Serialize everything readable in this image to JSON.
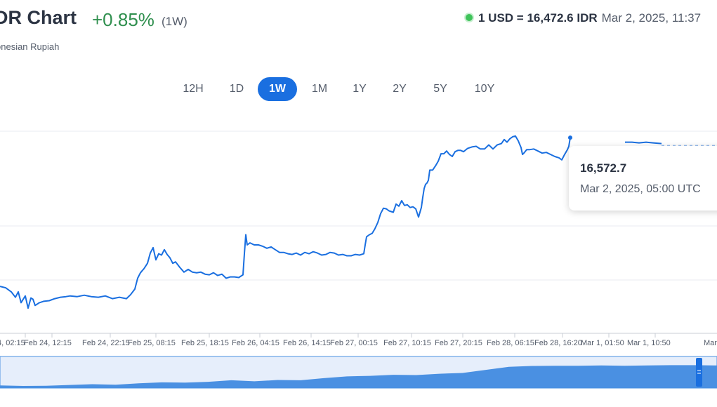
{
  "header": {
    "title": "DR Chart",
    "change": "+0.85%",
    "period": "(1W)",
    "subtitle": "onesian Rupiah"
  },
  "rate": {
    "value": "1 USD = 16,472.6 IDR",
    "timestamp": "Mar 2, 2025, 11:37"
  },
  "tabs": [
    "12H",
    "1D",
    "1W",
    "1M",
    "1Y",
    "2Y",
    "5Y",
    "10Y"
  ],
  "active_tab": "1W",
  "tooltip": {
    "value": "16,572.7",
    "date": "Mar 2, 2025, 05:00 UTC"
  },
  "colors": {
    "line": "#1a6fe0",
    "accent": "#1a6fe0",
    "positive": "#2f8f4e",
    "live_dot": "#3fc35a",
    "navigator_fill": "#4a90e2"
  },
  "chart_data": {
    "type": "line",
    "x_tick_labels": [
      "4, 02:15",
      "Feb 24, 12:15",
      "Feb 24, 22:15",
      "Feb 25, 08:15",
      "Feb 25, 18:15",
      "Feb 26, 04:15",
      "Feb 26, 14:15",
      "Feb 27, 00:15",
      "Feb 27, 10:15",
      "Feb 27, 20:15",
      "Feb 28, 06:15",
      "Feb 28, 16:20",
      "Mar 1, 01:50",
      "Mar 1, 10:50",
      "Mar"
    ],
    "ylim": [
      16285,
      16610
    ],
    "grid": "horizontal",
    "series": [
      {
        "x": [
          0,
          8,
          16,
          22,
          26,
          30,
          36,
          40,
          44,
          47,
          50,
          56,
          62,
          70,
          78,
          86,
          94,
          100,
          110,
          120,
          130,
          140,
          150,
          160,
          170,
          180,
          186,
          192,
          196,
          200,
          205,
          210,
          214,
          218,
          222,
          226,
          230,
          234,
          238,
          242,
          246,
          250,
          256,
          262,
          268,
          274,
          280,
          286,
          292,
          298,
          304,
          310,
          316,
          322,
          328,
          334,
          340,
          346,
          348,
          350,
          352,
          356,
          362,
          368,
          374,
          380,
          386,
          392,
          398,
          404,
          410,
          416,
          422,
          428,
          434,
          440,
          446,
          452,
          458,
          464,
          470,
          476,
          482,
          488,
          494,
          500,
          506,
          512,
          518,
          520,
          522,
          526,
          530,
          534,
          538,
          542,
          546,
          550,
          554,
          560,
          564,
          568,
          572,
          576,
          580,
          584,
          588,
          592,
          596,
          600,
          602,
          604,
          606,
          608,
          610,
          612,
          616,
          620,
          624,
          628,
          632,
          636,
          640,
          644,
          648,
          652,
          656,
          660,
          666,
          672,
          678,
          684,
          690,
          696,
          702,
          708,
          714,
          718,
          722,
          726,
          730,
          734,
          738,
          740,
          742,
          744,
          746,
          750,
          754,
          760,
          766,
          772,
          778,
          784,
          790,
          796,
          800,
          804,
          808,
          810,
          812
        ],
        "y": [
          16354,
          16352,
          16346,
          16338,
          16346,
          16330,
          16340,
          16322,
          16337,
          16335,
          16326,
          16330,
          16332,
          16333,
          16336,
          16338,
          16339,
          16340,
          16339,
          16341,
          16339,
          16338,
          16340,
          16336,
          16338,
          16336,
          16342,
          16350,
          16366,
          16374,
          16380,
          16388,
          16403,
          16411,
          16393,
          16402,
          16400,
          16408,
          16401,
          16396,
          16388,
          16390,
          16382,
          16375,
          16379,
          16375,
          16374,
          16375,
          16372,
          16371,
          16374,
          16370,
          16372,
          16366,
          16368,
          16368,
          16367,
          16371,
          16402,
          16430,
          16415,
          16418,
          16415,
          16415,
          16413,
          16410,
          16412,
          16408,
          16404,
          16404,
          16402,
          16401,
          16403,
          16400,
          16404,
          16402,
          16405,
          16403,
          16400,
          16401,
          16404,
          16403,
          16400,
          16401,
          16399,
          16399,
          16401,
          16400,
          16402,
          16415,
          16427,
          16430,
          16432,
          16439,
          16448,
          16461,
          16469,
          16468,
          16465,
          16463,
          16475,
          16472,
          16480,
          16473,
          16474,
          16470,
          16471,
          16468,
          16456,
          16470,
          16485,
          16498,
          16504,
          16506,
          16510,
          16525,
          16525,
          16531,
          16538,
          16549,
          16549,
          16553,
          16548,
          16545,
          16552,
          16554,
          16554,
          16552,
          16557,
          16559,
          16560,
          16556,
          16556,
          16562,
          16556,
          16562,
          16564,
          16570,
          16566,
          16571,
          16574,
          16575,
          16568,
          16563,
          16558,
          16548,
          16550,
          16555,
          16555,
          16556,
          16553,
          16550,
          16551,
          16548,
          16545,
          16543,
          16540,
          16548,
          16555,
          16560,
          16572.7
        ]
      },
      {
        "x": [
          890,
          900,
          910,
          920,
          930,
          942
        ],
        "y": [
          16566,
          16566,
          16565,
          16566,
          16565,
          16564
        ]
      }
    ]
  },
  "navigator": {
    "values": [
      0.1,
      0.08,
      0.09,
      0.12,
      0.15,
      0.13,
      0.18,
      0.22,
      0.21,
      0.24,
      0.3,
      0.26,
      0.31,
      0.3,
      0.38,
      0.45,
      0.47,
      0.51,
      0.5,
      0.55,
      0.58,
      0.7,
      0.82,
      0.85,
      0.86,
      0.86,
      0.87,
      0.86,
      0.87,
      0.88,
      0.88,
      0.87
    ]
  }
}
